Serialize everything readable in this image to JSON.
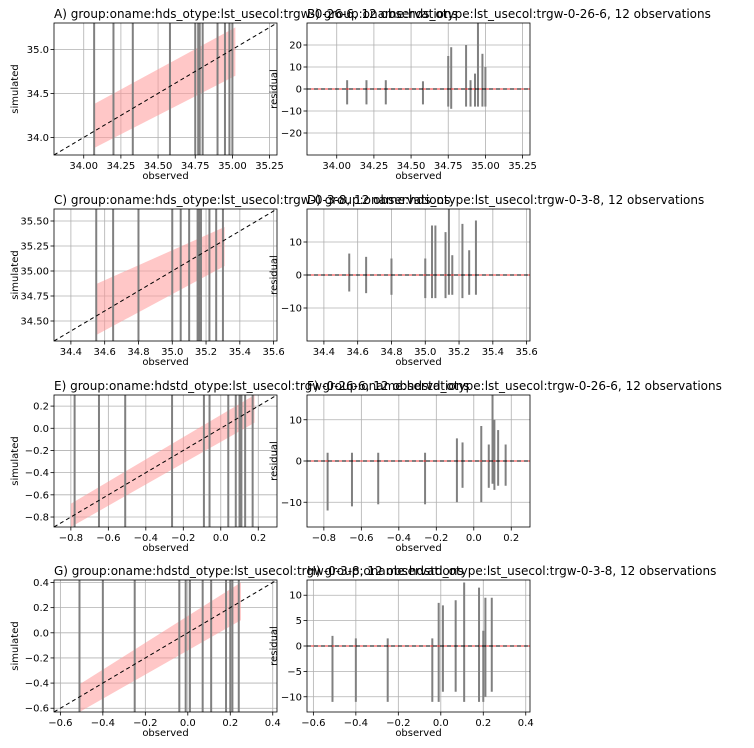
{
  "chart_data": [
    {
      "type": "scatter",
      "panel": "A",
      "title": "A) group:oname:hds_otype:lst_usecol:trgw-0-26-6, 12 observations",
      "xlabel": "observed",
      "ylabel": "simulated",
      "xlim": [
        33.8,
        35.3
      ],
      "ylim": [
        33.8,
        35.3
      ],
      "xticks": [
        34.0,
        34.25,
        34.5,
        34.75,
        35.0,
        35.25
      ],
      "yticks": [
        34.0,
        34.5,
        35.0
      ],
      "tick_labels_x": [
        "34.00",
        "34.25",
        "34.50",
        "34.75",
        "35.00",
        "35.25"
      ],
      "tick_labels_y": [
        "34.0",
        "34.5",
        "35.0"
      ],
      "grid": true,
      "colors": {
        "band": "#ff9999",
        "bars": "#808080",
        "line": "#000000"
      },
      "one_to_one_line": true,
      "observed": [
        34.07,
        34.2,
        34.33,
        34.58,
        34.75,
        34.77,
        34.78,
        34.8,
        34.9,
        34.95,
        34.98,
        35.0
      ],
      "band_x": [
        34.07,
        35.02
      ],
      "band_lower": [
        33.88,
        34.7
      ],
      "band_upper": [
        34.38,
        35.25
      ]
    },
    {
      "type": "scatter",
      "panel": "B",
      "title": "B) group:oname:hds_otype:lst_usecol:trgw-0-26-6, 12 observations",
      "xlabel": "observed",
      "ylabel": "residual",
      "xlim": [
        33.8,
        35.3
      ],
      "ylim": [
        -30,
        30
      ],
      "xticks": [
        34.0,
        34.25,
        34.5,
        34.75,
        35.0,
        35.25
      ],
      "yticks": [
        -20,
        -10,
        0,
        10,
        20
      ],
      "tick_labels_x": [
        "34.00",
        "34.25",
        "34.50",
        "34.75",
        "35.00",
        "35.25"
      ],
      "tick_labels_y": [
        "−20",
        "−10",
        "0",
        "10",
        "20"
      ],
      "grid": true,
      "colors": {
        "bars": "#808080",
        "line": "#000000",
        "zero": "#ff0000"
      },
      "observed": [
        34.07,
        34.2,
        34.33,
        34.58,
        34.75,
        34.77,
        34.87,
        34.9,
        34.93,
        34.95,
        34.98,
        35.0
      ],
      "res_low": [
        -7,
        -7,
        -7,
        -7,
        -8,
        -9,
        -8,
        -8,
        -8,
        -8,
        -8,
        -8
      ],
      "res_high": [
        4,
        4,
        4,
        3.5,
        15,
        19,
        20,
        4,
        7,
        30,
        16,
        10
      ]
    },
    {
      "type": "scatter",
      "panel": "C",
      "title": "C) group:oname:hds_otype:lst_usecol:trgw-0-3-8, 12 observations",
      "xlabel": "observed",
      "ylabel": "simulated",
      "xlim": [
        34.3,
        35.62
      ],
      "ylim": [
        34.3,
        35.62
      ],
      "xticks": [
        34.4,
        34.6,
        34.8,
        35.0,
        35.2,
        35.4,
        35.6
      ],
      "yticks": [
        34.5,
        34.75,
        35.0,
        35.25,
        35.5
      ],
      "tick_labels_x": [
        "34.4",
        "34.6",
        "34.8",
        "35.0",
        "35.2",
        "35.4",
        "35.6"
      ],
      "tick_labels_y": [
        "34.50",
        "34.75",
        "35.00",
        "35.25",
        "35.50"
      ],
      "grid": true,
      "colors": {
        "band": "#ff9999",
        "bars": "#808080",
        "line": "#000000"
      },
      "one_to_one_line": true,
      "observed": [
        34.55,
        34.65,
        34.8,
        35.0,
        35.05,
        35.1,
        35.15,
        35.16,
        35.17,
        35.22,
        35.26,
        35.3
      ],
      "band_x": [
        34.55,
        35.31
      ],
      "band_lower": [
        34.36,
        35.05
      ],
      "band_upper": [
        34.87,
        35.44
      ]
    },
    {
      "type": "scatter",
      "panel": "D",
      "title": "D) group:oname:hds_otype:lst_usecol:trgw-0-3-8, 12 observations",
      "xlabel": "observed",
      "ylabel": "residual",
      "xlim": [
        34.3,
        35.62
      ],
      "ylim": [
        -20,
        20
      ],
      "xticks": [
        34.4,
        34.6,
        34.8,
        35.0,
        35.2,
        35.4,
        35.6
      ],
      "yticks": [
        -10,
        0,
        10
      ],
      "tick_labels_x": [
        "34.4",
        "34.6",
        "34.8",
        "35.0",
        "35.2",
        "35.4",
        "35.6"
      ],
      "tick_labels_y": [
        "−10",
        "0",
        "10"
      ],
      "grid": true,
      "colors": {
        "bars": "#808080",
        "line": "#000000",
        "zero": "#ff0000"
      },
      "observed": [
        34.55,
        34.65,
        34.8,
        35.0,
        35.04,
        35.06,
        35.12,
        35.14,
        35.16,
        35.22,
        35.26,
        35.3
      ],
      "res_low": [
        -5,
        -5.5,
        -6,
        -7,
        -7,
        -7,
        -7,
        -6,
        -6,
        -7,
        -6,
        -6
      ],
      "res_high": [
        6.5,
        5.5,
        5,
        5,
        15,
        15,
        13,
        20,
        6,
        15.5,
        7.5,
        16.5
      ]
    },
    {
      "type": "scatter",
      "panel": "E",
      "title": "E) group:oname:hdstd_otype:lst_usecol:trgw-0-26-6, 12 observations",
      "xlabel": "observed",
      "ylabel": "simulated",
      "xlim": [
        -0.89,
        0.3
      ],
      "ylim": [
        -0.89,
        0.3
      ],
      "xticks": [
        -0.8,
        -0.6,
        -0.4,
        -0.2,
        0.0,
        0.2
      ],
      "yticks": [
        -0.8,
        -0.6,
        -0.4,
        -0.2,
        0.0,
        0.2
      ],
      "tick_labels_x": [
        "−0.8",
        "−0.6",
        "−0.4",
        "−0.2",
        "0.0",
        "0.2"
      ],
      "tick_labels_y": [
        "−0.8",
        "−0.6",
        "−0.4",
        "−0.2",
        "0.0",
        "0.2"
      ],
      "grid": true,
      "colors": {
        "band": "#ff9999",
        "bars": "#808080",
        "line": "#000000"
      },
      "one_to_one_line": true,
      "observed": [
        -0.78,
        -0.65,
        -0.51,
        -0.26,
        -0.09,
        -0.06,
        0.04,
        0.08,
        0.1,
        0.11,
        0.13,
        0.17
      ],
      "band_x": [
        -0.8,
        0.18
      ],
      "band_lower": [
        -0.89,
        0.05
      ],
      "band_upper": [
        -0.68,
        0.3
      ]
    },
    {
      "type": "scatter",
      "panel": "F",
      "title": "F) group:oname:hdstd_otype:lst_usecol:trgw-0-26-6, 12 observations",
      "xlabel": "observed",
      "ylabel": "residual",
      "xlim": [
        -0.89,
        0.3
      ],
      "ylim": [
        -16,
        16
      ],
      "xticks": [
        -0.8,
        -0.6,
        -0.4,
        -0.2,
        0.0,
        0.2
      ],
      "yticks": [
        -10,
        0,
        10
      ],
      "tick_labels_x": [
        "−0.8",
        "−0.6",
        "−0.4",
        "−0.2",
        "0.0",
        "0.2"
      ],
      "tick_labels_y": [
        "−10",
        "0",
        "10"
      ],
      "grid": true,
      "colors": {
        "bars": "#808080",
        "line": "#000000",
        "zero": "#ff0000"
      },
      "observed": [
        -0.78,
        -0.65,
        -0.51,
        -0.26,
        -0.09,
        -0.06,
        0.04,
        0.08,
        0.1,
        0.11,
        0.13,
        0.17
      ],
      "res_low": [
        -12,
        -11,
        -10.5,
        -10.5,
        -10,
        -6.5,
        -10,
        -6.5,
        -5.5,
        -7,
        -6,
        -6
      ],
      "res_high": [
        2,
        2,
        2,
        2,
        5.5,
        4.5,
        8.5,
        4,
        16,
        10,
        7.5,
        4
      ]
    },
    {
      "type": "scatter",
      "panel": "G",
      "title": "G) group:oname:hdstd_otype:lst_usecol:trgw-0-3-8, 12 observations",
      "xlabel": "observed",
      "ylabel": "simulated",
      "xlim": [
        -0.63,
        0.42
      ],
      "ylim": [
        -0.63,
        0.42
      ],
      "xticks": [
        -0.6,
        -0.4,
        -0.2,
        0.0,
        0.2,
        0.4
      ],
      "yticks": [
        -0.6,
        -0.4,
        -0.2,
        0.0,
        0.2,
        0.4
      ],
      "tick_labels_x": [
        "−0.6",
        "−0.4",
        "−0.2",
        "0.0",
        "0.2",
        "0.4"
      ],
      "tick_labels_y": [
        "−0.6",
        "−0.4",
        "−0.2",
        "0.0",
        "0.2",
        "0.4"
      ],
      "grid": true,
      "colors": {
        "band": "#ff9999",
        "bars": "#808080",
        "line": "#000000"
      },
      "one_to_one_line": true,
      "observed": [
        -0.51,
        -0.4,
        -0.25,
        -0.04,
        -0.01,
        0.01,
        0.07,
        0.11,
        0.18,
        0.2,
        0.21,
        0.24
      ],
      "band_x": [
        -0.51,
        0.25
      ],
      "band_lower": [
        -0.63,
        0.1
      ],
      "band_upper": [
        -0.41,
        0.4
      ]
    },
    {
      "type": "scatter",
      "panel": "H",
      "title": "H) group:oname:hdstd_otype:lst_usecol:trgw-0-3-8, 12 observations",
      "xlabel": "observed",
      "ylabel": "residual",
      "xlim": [
        -0.63,
        0.42
      ],
      "ylim": [
        -13,
        13
      ],
      "xticks": [
        -0.6,
        -0.4,
        -0.2,
        0.0,
        0.2,
        0.4
      ],
      "yticks": [
        -10,
        -5,
        0,
        5,
        10
      ],
      "tick_labels_x": [
        "−0.6",
        "−0.4",
        "−0.2",
        "0.0",
        "0.2",
        "0.4"
      ],
      "tick_labels_y": [
        "−10",
        "−5",
        "0",
        "5",
        "10"
      ],
      "grid": true,
      "colors": {
        "bars": "#808080",
        "line": "#000000",
        "zero": "#ff0000"
      },
      "observed": [
        -0.51,
        -0.4,
        -0.25,
        -0.04,
        -0.01,
        0.01,
        0.07,
        0.11,
        0.18,
        0.2,
        0.21,
        0.24
      ],
      "res_low": [
        -11,
        -11,
        -11,
        -11,
        -11,
        -9,
        -9,
        -11,
        -11,
        -11,
        -10,
        -9
      ],
      "res_high": [
        2,
        1.5,
        1.5,
        1.5,
        8.5,
        8,
        9,
        12.5,
        11.5,
        3,
        9.5,
        9.5
      ]
    }
  ]
}
